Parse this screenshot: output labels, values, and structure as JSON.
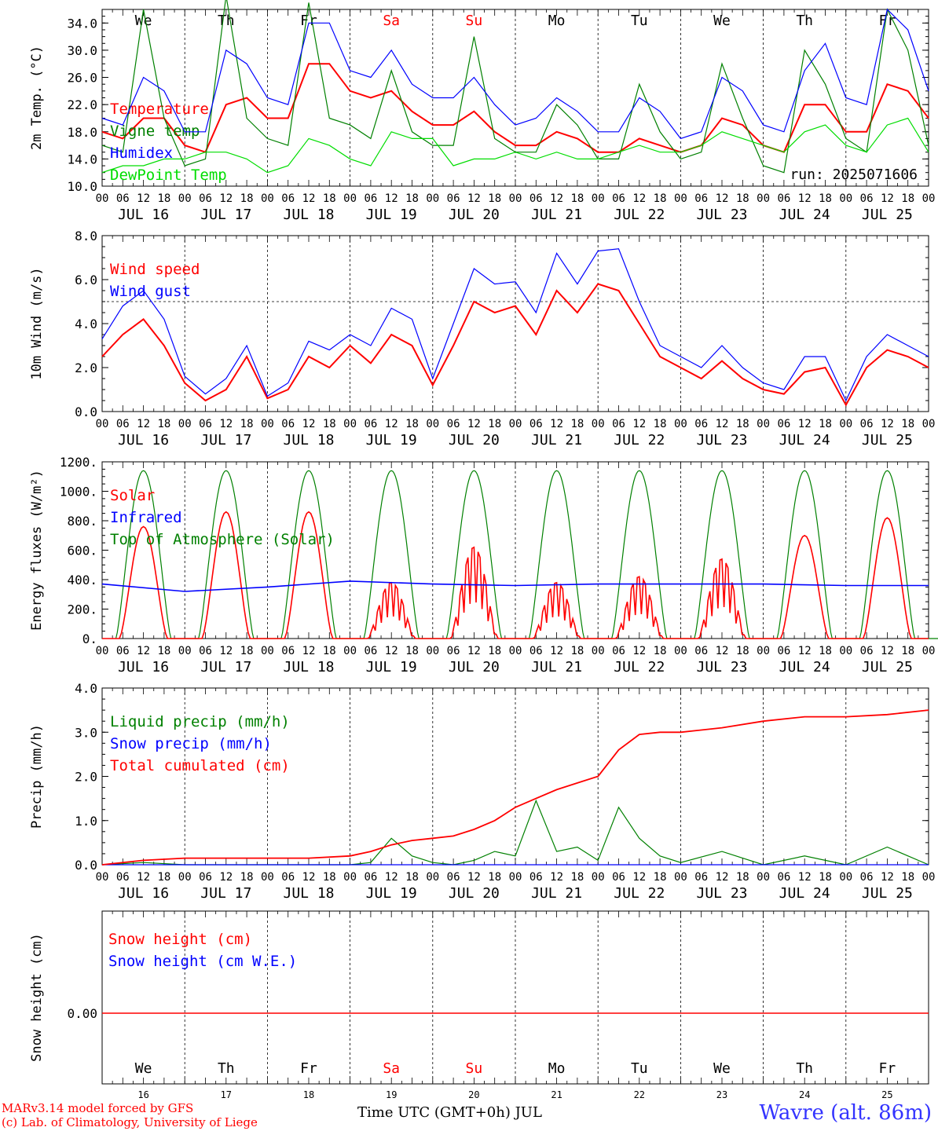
{
  "run_label": "run: 2025071606",
  "footer": {
    "credit_line1": "MARv3.14 model forced by GFS",
    "credit_line2": "(c) Lab. of Climatology, University of Liege",
    "xlabel": "Time UTC (GMT+0h) JUL",
    "station": "Wavre (alt. 86m)"
  },
  "colors": {
    "red": "#ff0000",
    "green": "#008000",
    "blue": "#0000ff",
    "lightgreen": "#00dd00",
    "weekend": "#ff0000"
  },
  "days": [
    "JUL 16",
    "JUL 17",
    "JUL 18",
    "JUL 19",
    "JUL 20",
    "JUL 21",
    "JUL 22",
    "JUL 23",
    "JUL 24",
    "JUL 25"
  ],
  "day_numbers": [
    "16",
    "17",
    "18",
    "19",
    "20",
    "21",
    "22",
    "23",
    "24",
    "25"
  ],
  "weekdays": [
    "We",
    "Th",
    "Fr",
    "Sa",
    "Su",
    "Mo",
    "Tu",
    "We",
    "Th",
    "Fr"
  ],
  "weekend_index": [
    3,
    4
  ],
  "hour_ticks": [
    "00",
    "06",
    "12",
    "18"
  ],
  "last_tick": "00",
  "chart_data": [
    {
      "type": "line",
      "ylabel": "2m Temp. (°C)",
      "ylim": [
        10,
        36
      ],
      "yticks": [
        "10.0",
        "14.0",
        "18.0",
        "22.0",
        "26.0",
        "30.0",
        "34.0"
      ],
      "x": [
        0,
        0.25,
        0.5,
        0.75,
        1,
        1.25,
        1.5,
        1.75,
        2,
        2.25,
        2.5,
        2.75,
        3,
        3.25,
        3.5,
        3.75,
        4,
        4.25,
        4.5,
        4.75,
        5,
        5.25,
        5.5,
        5.75,
        6,
        6.25,
        6.5,
        6.75,
        7,
        7.25,
        7.5,
        7.75,
        8,
        8.25,
        8.5,
        8.75,
        9,
        9.25,
        9.5,
        9.75,
        10
      ],
      "series": [
        {
          "name": "Temperature",
          "color": "red",
          "values": [
            18,
            17,
            20,
            20,
            16,
            15,
            22,
            23,
            20,
            20,
            28,
            28,
            24,
            23,
            24,
            21,
            19,
            19,
            21,
            18,
            16,
            16,
            18,
            17,
            15,
            15,
            17,
            16,
            15,
            16,
            20,
            19,
            16,
            15,
            22,
            22,
            18,
            18,
            25,
            24,
            20
          ]
        },
        {
          "name": "Vigne temp",
          "color": "green",
          "values": [
            16,
            15,
            36,
            20,
            13,
            14,
            38,
            20,
            17,
            16,
            37,
            20,
            19,
            17,
            27,
            18,
            16,
            16,
            32,
            17,
            15,
            15,
            22,
            19,
            14,
            14,
            25,
            18,
            14,
            15,
            28,
            20,
            13,
            12,
            30,
            25,
            17,
            15,
            36,
            30,
            16
          ]
        },
        {
          "name": "Humidex",
          "color": "blue",
          "values": [
            20,
            19,
            26,
            24,
            18,
            18,
            30,
            28,
            23,
            22,
            34,
            34,
            27,
            26,
            30,
            25,
            23,
            23,
            26,
            22,
            19,
            20,
            23,
            21,
            18,
            18,
            23,
            21,
            17,
            18,
            26,
            24,
            19,
            18,
            27,
            31,
            23,
            22,
            36,
            33,
            24
          ]
        },
        {
          "name": "DewPoint Temp",
          "color": "lightgreen",
          "values": [
            12,
            13,
            13,
            14,
            14,
            15,
            15,
            14,
            12,
            13,
            17,
            16,
            14,
            13,
            18,
            17,
            17,
            13,
            14,
            14,
            15,
            14,
            15,
            14,
            14,
            15,
            16,
            15,
            15,
            16,
            18,
            17,
            16,
            15,
            18,
            19,
            16,
            15,
            19,
            20,
            15
          ]
        }
      ]
    },
    {
      "type": "line",
      "ylabel": "10m Wind (m/s)",
      "ylim": [
        0,
        8
      ],
      "yticks": [
        "0.0",
        "2.0",
        "4.0",
        "6.0",
        "8.0"
      ],
      "reference_line": 5,
      "x": [
        0,
        0.25,
        0.5,
        0.75,
        1,
        1.25,
        1.5,
        1.75,
        2,
        2.25,
        2.5,
        2.75,
        3,
        3.25,
        3.5,
        3.75,
        4,
        4.25,
        4.5,
        4.75,
        5,
        5.25,
        5.5,
        5.75,
        6,
        6.25,
        6.5,
        6.75,
        7,
        7.25,
        7.5,
        7.75,
        8,
        8.25,
        8.5,
        8.75,
        9,
        9.25,
        9.5,
        9.75,
        10
      ],
      "series": [
        {
          "name": "Wind speed",
          "color": "red",
          "values": [
            2.5,
            3.5,
            4.2,
            3.0,
            1.3,
            0.5,
            1.0,
            2.5,
            0.6,
            1.0,
            2.5,
            2.0,
            3.0,
            2.2,
            3.5,
            3.0,
            1.2,
            3.0,
            5.0,
            4.5,
            4.8,
            3.5,
            5.5,
            4.5,
            5.8,
            5.5,
            4.0,
            2.5,
            2.0,
            1.5,
            2.3,
            1.5,
            1.0,
            0.8,
            1.8,
            2.0,
            0.3,
            2.0,
            2.8,
            2.5,
            2.0
          ]
        },
        {
          "name": "Wind gust",
          "color": "blue",
          "values": [
            3.3,
            4.8,
            5.5,
            4.2,
            1.6,
            0.8,
            1.5,
            3.0,
            0.7,
            1.3,
            3.2,
            2.8,
            3.5,
            3.0,
            4.7,
            4.2,
            1.5,
            4.0,
            6.5,
            5.8,
            5.9,
            4.5,
            7.2,
            5.8,
            7.3,
            7.4,
            5.0,
            3.0,
            2.5,
            2.0,
            3.0,
            2.0,
            1.3,
            1.0,
            2.5,
            2.5,
            0.5,
            2.5,
            3.5,
            3.0,
            2.5
          ]
        }
      ]
    },
    {
      "type": "line",
      "ylabel": "Energy fluxes (W/m²)",
      "ylim": [
        0,
        1200
      ],
      "yticks": [
        "0.",
        "200.",
        "400.",
        "600.",
        "800.",
        "1000.",
        "1200."
      ],
      "series": [
        {
          "name": "Solar",
          "color": "red",
          "peaks": [
            760,
            860,
            860,
            380,
            620,
            380,
            420,
            540,
            700,
            820
          ],
          "shape": "erratic"
        },
        {
          "name": "Infrared",
          "color": "blue",
          "baseline": [
            370,
            320,
            350,
            390,
            370,
            360,
            370,
            370,
            370,
            360
          ]
        },
        {
          "name": "Top of Atmosphere (Solar)",
          "color": "green",
          "peak": 1140
        }
      ]
    },
    {
      "type": "line",
      "ylabel": "Precip (mm/h)",
      "ylim": [
        0,
        4
      ],
      "yticks": [
        "0.0",
        "1.0",
        "2.0",
        "3.0",
        "4.0"
      ],
      "x": [
        0,
        0.5,
        1,
        1.5,
        2,
        2.5,
        3,
        3.25,
        3.5,
        3.75,
        4,
        4.25,
        4.5,
        4.75,
        5,
        5.25,
        5.5,
        5.75,
        6,
        6.25,
        6.5,
        6.75,
        7,
        7.5,
        8,
        8.5,
        9,
        9.5,
        10
      ],
      "series": [
        {
          "name": "Liquid precip (mm/h)",
          "color": "green",
          "values": [
            0,
            0.05,
            0,
            0,
            0,
            0,
            0,
            0.05,
            0.6,
            0.2,
            0.05,
            0,
            0.1,
            0.3,
            0.2,
            1.45,
            0.3,
            0.4,
            0.1,
            1.3,
            0.6,
            0.2,
            0.05,
            0.3,
            0,
            0.2,
            0,
            0.4,
            0
          ]
        },
        {
          "name": "Snow precip (mm/h)",
          "color": "blue",
          "values": [
            0,
            0,
            0,
            0,
            0,
            0,
            0,
            0,
            0,
            0,
            0,
            0,
            0,
            0,
            0,
            0,
            0,
            0,
            0,
            0,
            0,
            0,
            0,
            0,
            0,
            0,
            0,
            0,
            0
          ]
        },
        {
          "name": "Total cumulated (cm)",
          "color": "red",
          "values": [
            0,
            0.1,
            0.15,
            0.15,
            0.15,
            0.15,
            0.2,
            0.3,
            0.45,
            0.55,
            0.6,
            0.65,
            0.8,
            1.0,
            1.3,
            1.5,
            1.7,
            1.85,
            2.0,
            2.6,
            2.95,
            3.0,
            3.0,
            3.1,
            3.25,
            3.35,
            3.35,
            3.4,
            3.5
          ]
        }
      ]
    },
    {
      "type": "line",
      "ylabel": "Snow height (cm)",
      "ylim": [
        -1,
        1
      ],
      "yticks": [
        "0.00"
      ],
      "series": [
        {
          "name": "Snow height (cm)",
          "color": "red",
          "values": [
            0,
            0
          ]
        },
        {
          "name": "Snow height (cm W.E.)",
          "color": "blue",
          "values": [
            0,
            0
          ]
        }
      ]
    }
  ]
}
